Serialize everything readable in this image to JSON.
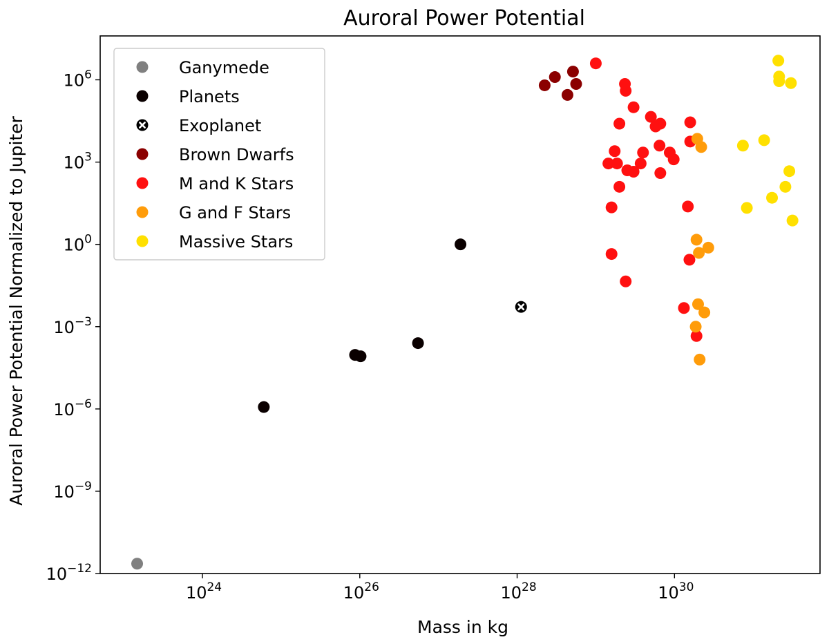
{
  "chart_data": {
    "type": "scatter",
    "title": "Auroral Power Potential",
    "xlabel": "Mass in kg",
    "ylabel": "Auroral Power Potential Normalized to Jupiter",
    "xscale": "log",
    "yscale": "log",
    "xlim_log10": [
      22.7,
      31.85
    ],
    "ylim_log10": [
      -12,
      7.6
    ],
    "x_ticks": [
      {
        "base": "10",
        "exp": "24",
        "log": 24
      },
      {
        "base": "10",
        "exp": "26",
        "log": 26
      },
      {
        "base": "10",
        "exp": "28",
        "log": 28
      },
      {
        "base": "10",
        "exp": "30",
        "log": 30
      }
    ],
    "y_ticks": [
      {
        "base": "10",
        "exp": "6",
        "log": 6
      },
      {
        "base": "10",
        "exp": "3",
        "log": 3
      },
      {
        "base": "10",
        "exp": "0",
        "log": 0
      },
      {
        "base": "10",
        "exp": "−3",
        "log": -3
      },
      {
        "base": "10",
        "exp": "−6",
        "log": -6
      },
      {
        "base": "10",
        "exp": "−9",
        "log": -9
      },
      {
        "base": "10",
        "exp": "−12",
        "log": -12
      }
    ],
    "grid": false,
    "legend_position": "top-left",
    "series": [
      {
        "name": "Ganymede",
        "color": "#808080",
        "marker": "circle",
        "points_log10": [
          [
            23.17,
            -11.64
          ]
        ]
      },
      {
        "name": "Planets",
        "color": "#0a0000",
        "marker": "circle",
        "points_log10": [
          [
            24.78,
            -5.93
          ],
          [
            25.94,
            -4.03
          ],
          [
            26.01,
            -4.08
          ],
          [
            26.74,
            -3.6
          ],
          [
            27.28,
            0.0
          ]
        ]
      },
      {
        "name": "Exoplanet",
        "color": "#000000",
        "marker": "circle-x",
        "points_log10": [
          [
            28.05,
            -2.28
          ]
        ]
      },
      {
        "name": "Brown Dwarfs",
        "color": "#8b0000",
        "marker": "circle",
        "points_log10": [
          [
            28.35,
            5.8
          ],
          [
            28.48,
            6.1
          ],
          [
            28.64,
            5.45
          ],
          [
            28.71,
            6.3
          ],
          [
            28.75,
            5.85
          ]
        ]
      },
      {
        "name": "M and K Stars",
        "color": "#ff1010",
        "marker": "circle",
        "points_log10": [
          [
            29.0,
            6.6
          ],
          [
            29.16,
            2.95
          ],
          [
            29.2,
            1.35
          ],
          [
            29.2,
            -0.35
          ],
          [
            29.24,
            3.4
          ],
          [
            29.27,
            2.95
          ],
          [
            29.3,
            4.4
          ],
          [
            29.3,
            2.1
          ],
          [
            29.37,
            5.85
          ],
          [
            29.38,
            5.6
          ],
          [
            29.4,
            2.7
          ],
          [
            29.38,
            -1.35
          ],
          [
            29.48,
            5.0
          ],
          [
            29.48,
            2.65
          ],
          [
            29.57,
            2.95
          ],
          [
            29.6,
            3.35
          ],
          [
            29.7,
            4.65
          ],
          [
            29.76,
            4.3
          ],
          [
            29.82,
            4.4
          ],
          [
            29.81,
            3.6
          ],
          [
            29.82,
            2.6
          ],
          [
            29.94,
            3.35
          ],
          [
            29.99,
            3.1
          ],
          [
            30.17,
            1.38
          ],
          [
            30.2,
            4.45
          ],
          [
            30.2,
            3.75
          ],
          [
            30.19,
            -0.56
          ],
          [
            30.12,
            -2.32
          ],
          [
            30.28,
            -3.34
          ]
        ]
      },
      {
        "name": "G and F Stars",
        "color": "#ff9c0a",
        "marker": "circle",
        "points_log10": [
          [
            30.29,
            3.85
          ],
          [
            30.34,
            3.55
          ],
          [
            30.28,
            0.17
          ],
          [
            30.31,
            -0.31
          ],
          [
            30.43,
            -0.12
          ],
          [
            30.3,
            -2.18
          ],
          [
            30.38,
            -2.48
          ],
          [
            30.27,
            -3.0
          ],
          [
            30.32,
            -4.2
          ]
        ]
      },
      {
        "name": "Massive Stars",
        "color": "#ffe000",
        "marker": "circle",
        "points_log10": [
          [
            30.87,
            3.6
          ],
          [
            30.92,
            1.33
          ],
          [
            31.14,
            3.8
          ],
          [
            31.24,
            1.7
          ],
          [
            31.32,
            6.7
          ],
          [
            31.33,
            6.12
          ],
          [
            31.33,
            5.95
          ],
          [
            31.41,
            2.1
          ],
          [
            31.46,
            2.67
          ],
          [
            31.48,
            5.88
          ],
          [
            31.5,
            0.87
          ]
        ]
      }
    ]
  }
}
